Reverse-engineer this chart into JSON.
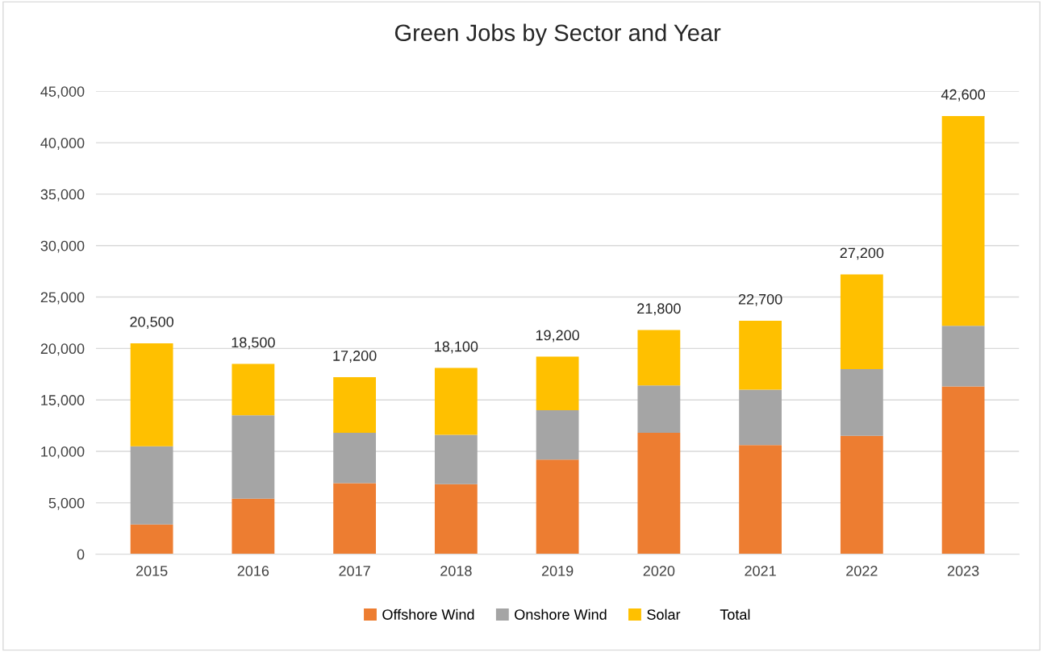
{
  "chart_data": {
    "type": "bar",
    "title": "Green Jobs by Sector and Year",
    "categories": [
      "2015",
      "2016",
      "2017",
      "2018",
      "2019",
      "2020",
      "2021",
      "2022",
      "2023"
    ],
    "stacked": true,
    "series": [
      {
        "name": "Offshore Wind",
        "color": "#ed7d31",
        "values": [
          2900,
          5400,
          6900,
          6800,
          9200,
          11800,
          10600,
          11500,
          16300
        ]
      },
      {
        "name": "Onshore Wind",
        "color": "#a5a5a5",
        "values": [
          7600,
          8100,
          4900,
          4800,
          4800,
          4600,
          5400,
          6500,
          5900
        ]
      },
      {
        "name": "Solar",
        "color": "#ffc000",
        "values": [
          10000,
          5000,
          5400,
          6500,
          5200,
          5400,
          6700,
          9200,
          20400
        ]
      },
      {
        "name": "Total",
        "type": "line",
        "values": [
          null,
          null,
          null,
          null,
          null,
          null,
          null,
          null,
          null
        ]
      }
    ],
    "totals": [
      "20,500",
      "18,500",
      "17,200",
      "18,100",
      "19,200",
      "21,800",
      "22,700",
      "27,200",
      "42,600"
    ],
    "ylim": [
      0,
      45000
    ],
    "yticks": [
      {
        "value": 0,
        "label": "0"
      },
      {
        "value": 5000,
        "label": "5,000"
      },
      {
        "value": 10000,
        "label": "10,000"
      },
      {
        "value": 15000,
        "label": "15,000"
      },
      {
        "value": 20000,
        "label": "20,000"
      },
      {
        "value": 25000,
        "label": "25,000"
      },
      {
        "value": 30000,
        "label": "30,000"
      },
      {
        "value": 35000,
        "label": "35,000"
      },
      {
        "value": 40000,
        "label": "40,000"
      },
      {
        "value": 45000,
        "label": "45,000"
      }
    ],
    "grid": "y",
    "legend": "bottom"
  }
}
